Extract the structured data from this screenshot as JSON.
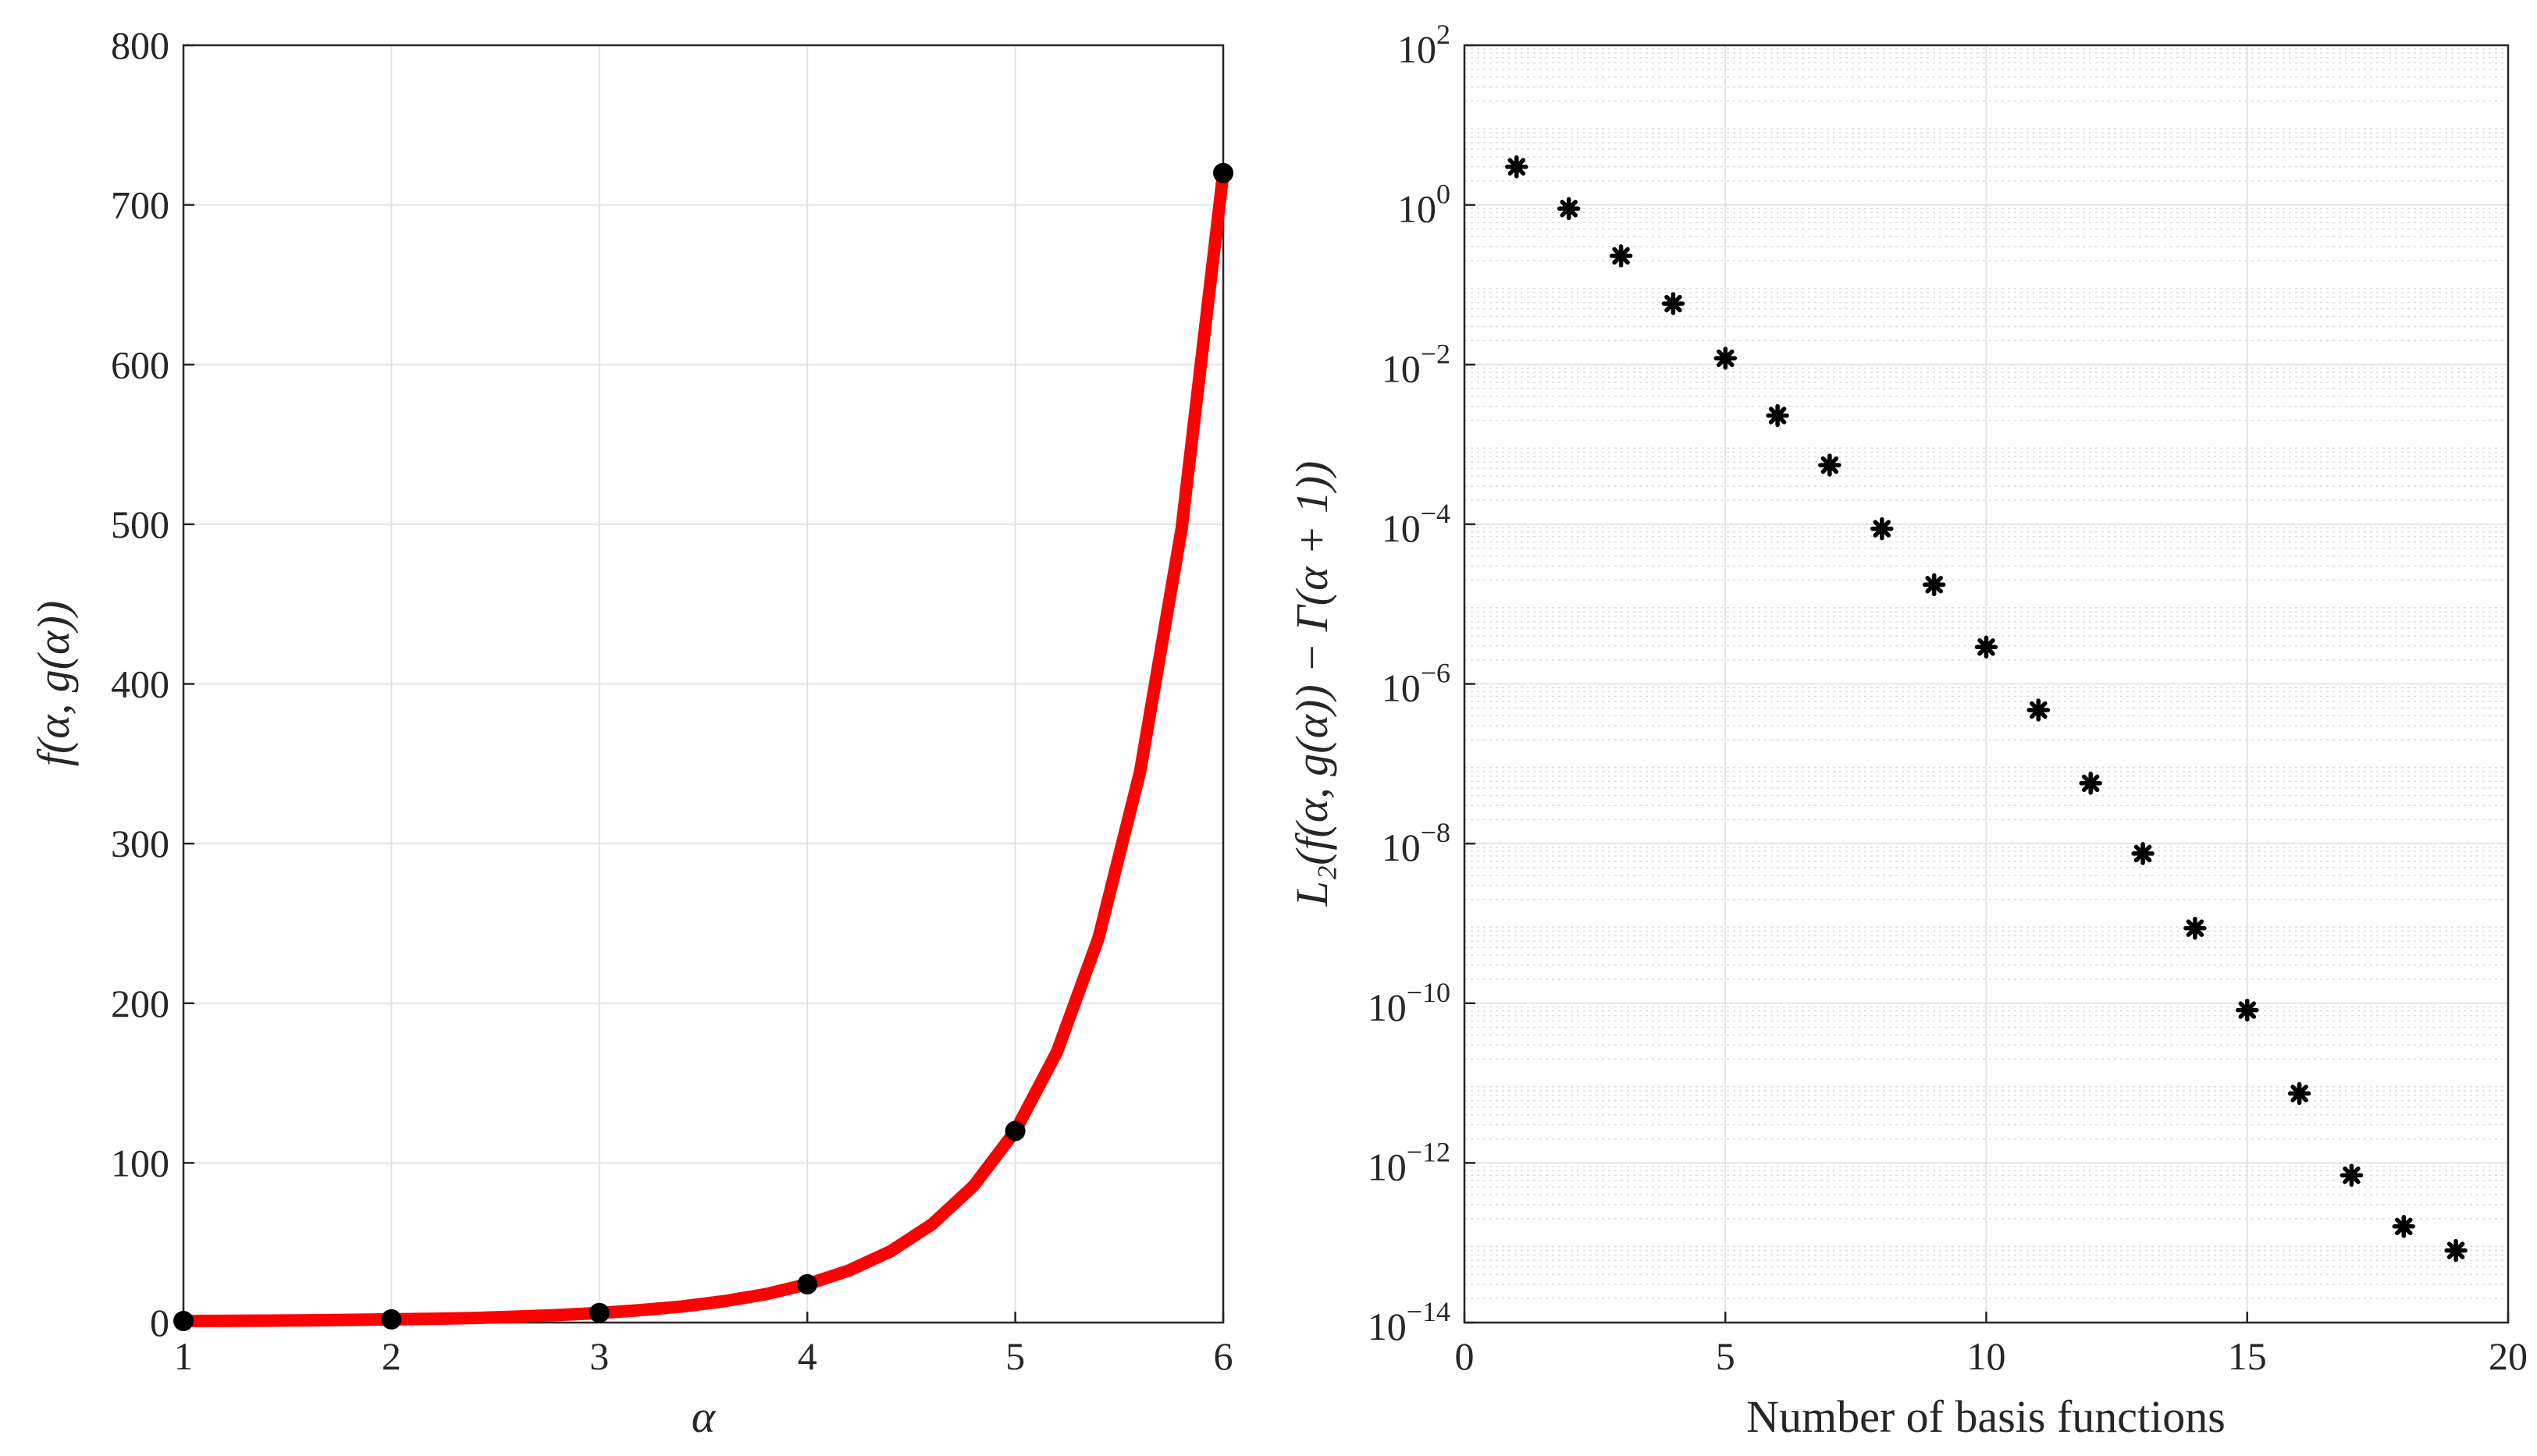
{
  "chart_data": [
    {
      "type": "line",
      "xlabel": "α",
      "ylabel": "f(α, g(α))",
      "xlim": [
        1,
        6
      ],
      "ylim": [
        0,
        800
      ],
      "x_ticks": [
        "1",
        "2",
        "3",
        "4",
        "5",
        "6"
      ],
      "y_ticks": [
        "0",
        "100",
        "200",
        "300",
        "400",
        "500",
        "600",
        "700",
        "800"
      ],
      "grid": true,
      "series": [
        {
          "style": "line",
          "color": "#ff0000",
          "x": [
            1,
            1.2,
            1.4,
            1.6,
            1.8,
            2,
            2.2,
            2.4,
            2.6,
            2.8,
            3,
            3.2,
            3.4,
            3.6,
            3.8,
            4,
            4.2,
            4.4,
            4.6,
            4.8,
            5,
            5.2,
            5.4,
            5.6,
            5.8,
            6
          ],
          "y": [
            1,
            1.1,
            1.2,
            1.4,
            1.7,
            2,
            2.4,
            2.9,
            3.7,
            4.7,
            6,
            7.8,
            10.1,
            13.4,
            17.8,
            24,
            32.6,
            44.6,
            61.6,
            85.6,
            120,
            169.4,
            240.8,
            344.8,
            497.2,
            720
          ]
        },
        {
          "style": "markers",
          "marker": "filled-circle",
          "color": "#000000",
          "x": [
            1,
            2,
            3,
            4,
            5,
            6
          ],
          "y": [
            1,
            2,
            6,
            24,
            120,
            720
          ]
        }
      ]
    },
    {
      "type": "scatter",
      "xlabel": "Number of basis functions",
      "ylabel": "L₂(f(α, g(α)) − Γ(α + 1))",
      "xlim": [
        0,
        20
      ],
      "ylim": [
        1e-14,
        100
      ],
      "yscale": "log",
      "x_ticks": [
        "0",
        "5",
        "10",
        "15",
        "20"
      ],
      "y_ticks": [
        {
          "base": "10",
          "exp": "-14"
        },
        {
          "base": "10",
          "exp": "-12"
        },
        {
          "base": "10",
          "exp": "-10"
        },
        {
          "base": "10",
          "exp": "-8"
        },
        {
          "base": "10",
          "exp": "-6"
        },
        {
          "base": "10",
          "exp": "-4"
        },
        {
          "base": "10",
          "exp": "-2"
        },
        {
          "base": "10",
          "exp": "0"
        },
        {
          "base": "10",
          "exp": "2"
        }
      ],
      "grid": true,
      "minor_grid": true,
      "series": [
        {
          "marker": "asterisk",
          "color": "#000000",
          "x": [
            1,
            2,
            3,
            4,
            5,
            6,
            7,
            8,
            9,
            10,
            11,
            12,
            13,
            14,
            15,
            16,
            17,
            18,
            19
          ],
          "y": [
            3.0,
            0.9,
            0.23,
            0.058,
            0.012,
            0.0023,
            0.00055,
            8.8e-05,
            1.75e-05,
            2.9e-06,
            4.7e-07,
            5.7e-08,
            7.5e-09,
            8.7e-10,
            8.2e-11,
            7.4e-12,
            7e-13,
            1.6e-13,
            8e-14
          ]
        }
      ]
    }
  ]
}
